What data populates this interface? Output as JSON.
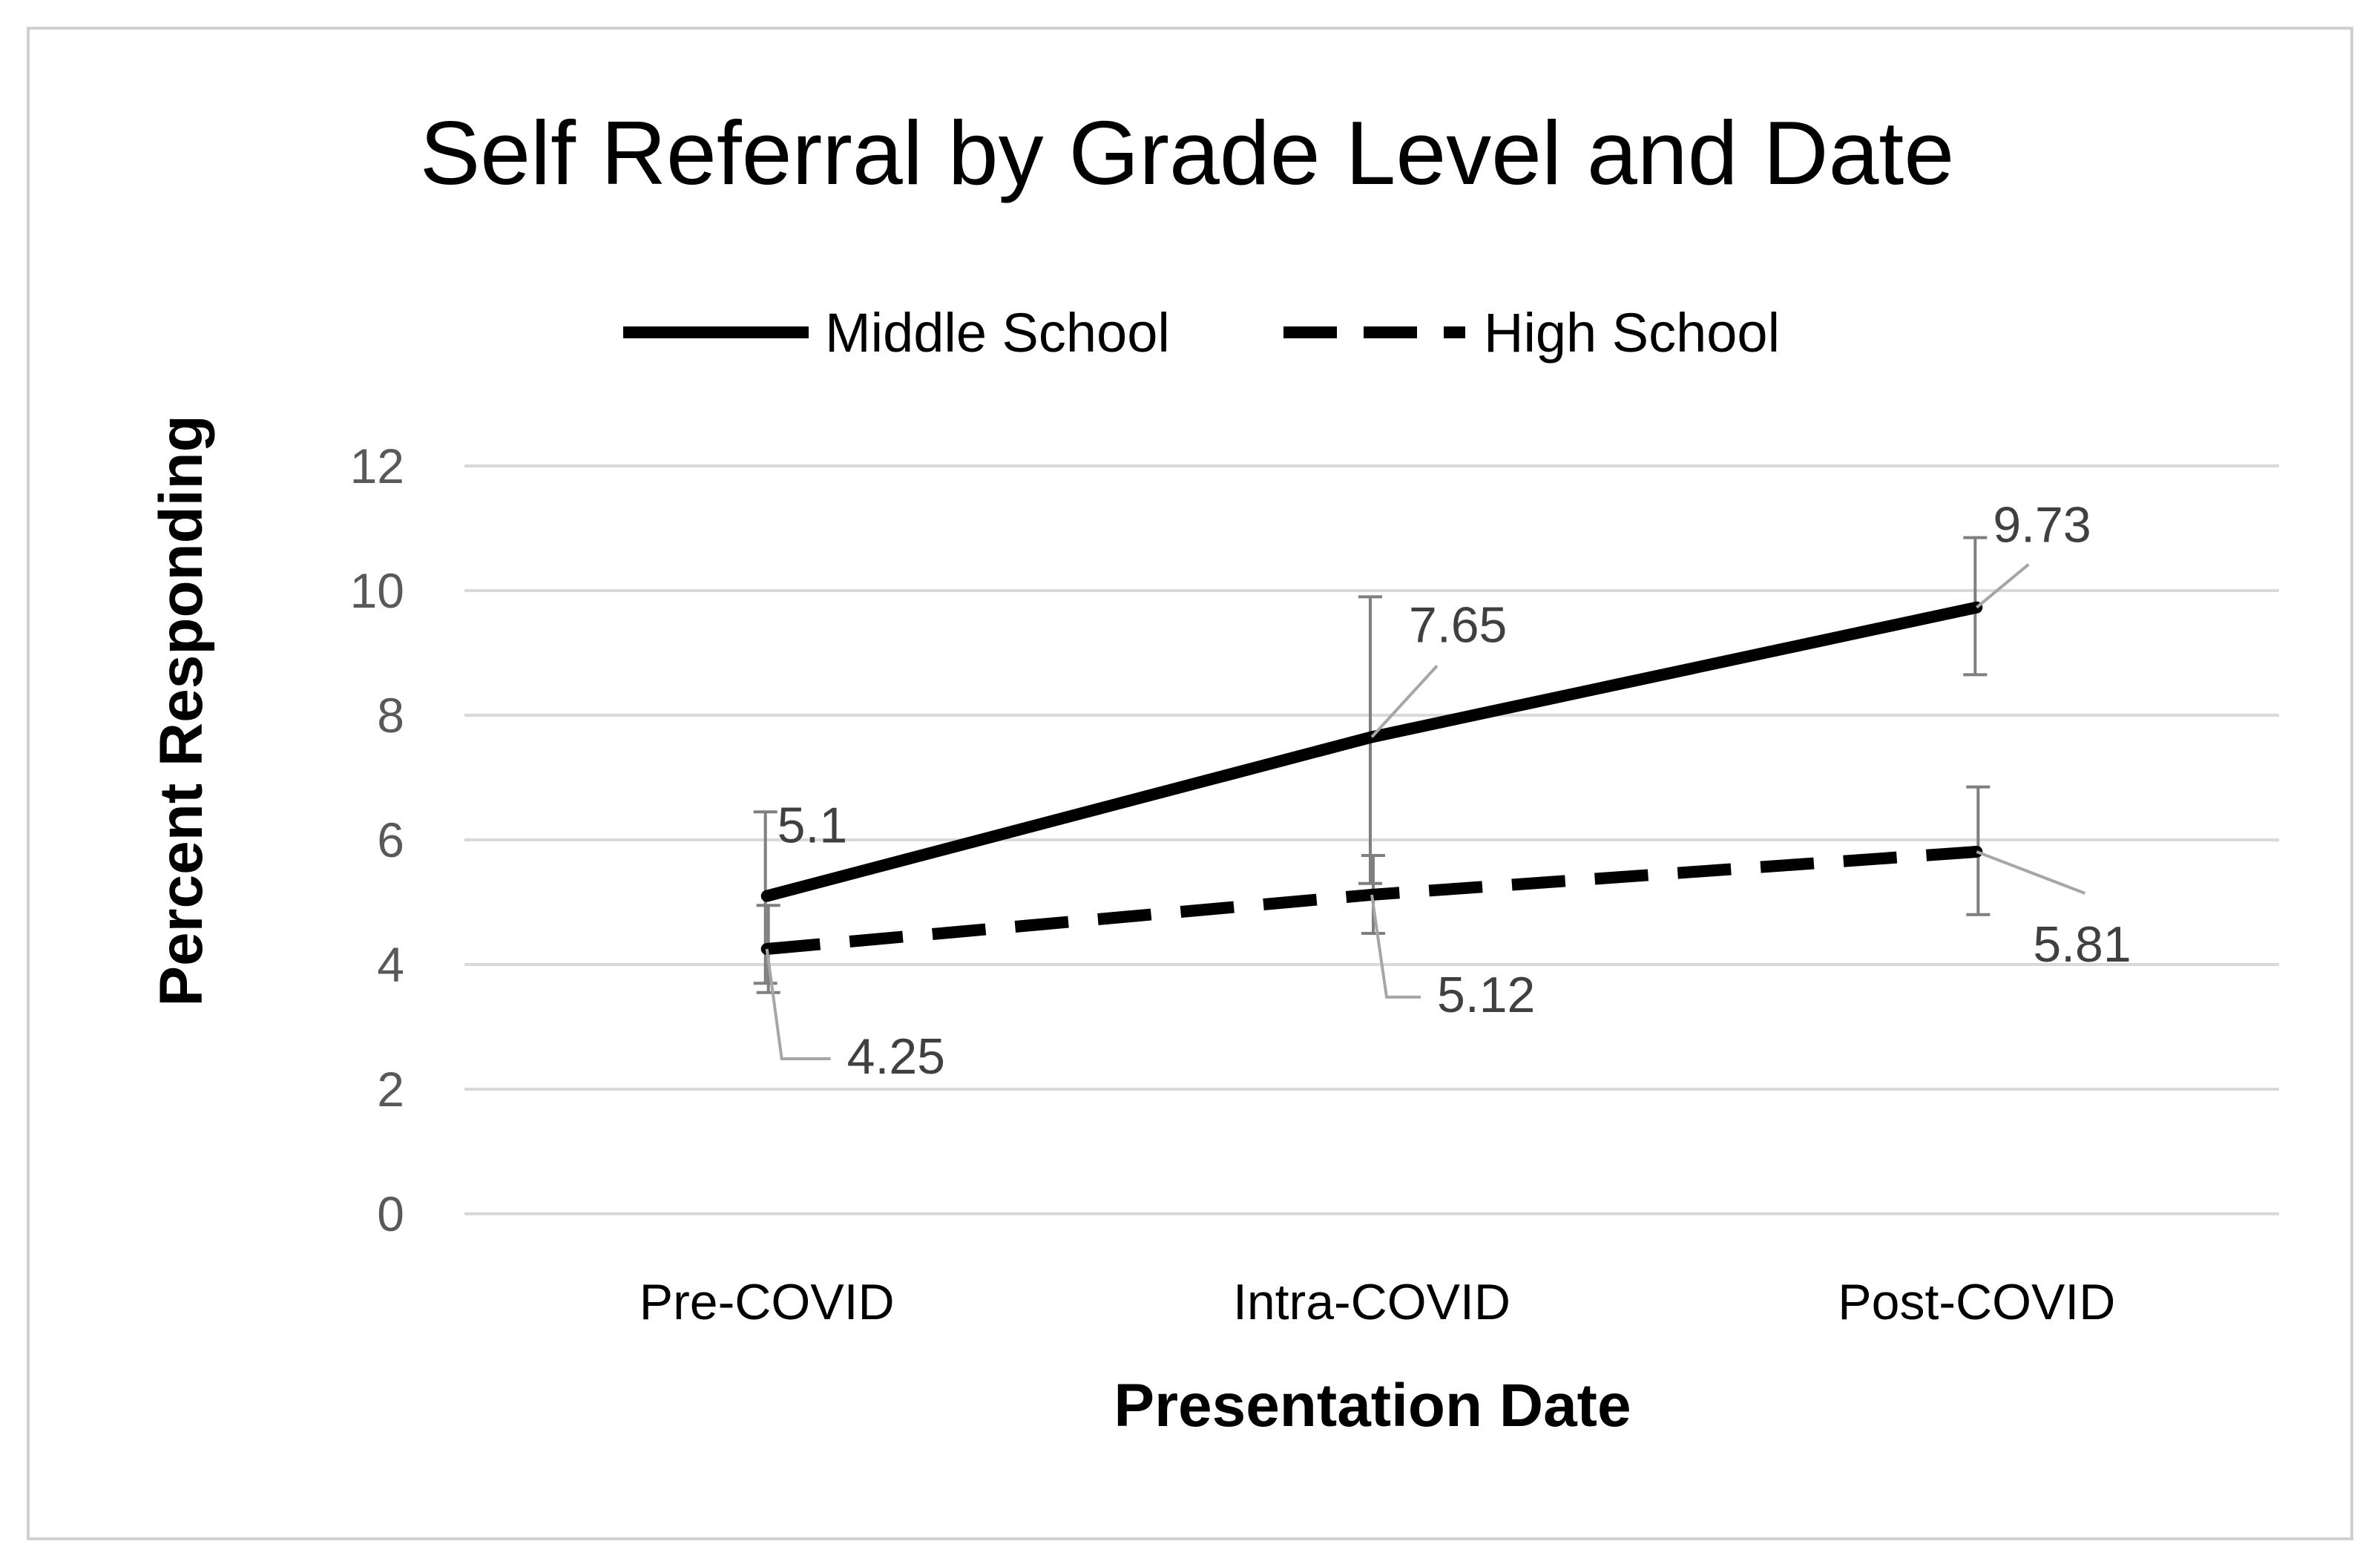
{
  "chart_data": {
    "type": "line",
    "title": "Self Referral by Grade Level and Date",
    "xlabel": "Presentation Date",
    "ylabel": "Percent Responding",
    "categories": [
      "Pre-COVID",
      "Intra-COVID",
      "Post-COVID"
    ],
    "ylim": [
      0,
      12
    ],
    "yticks": [
      0,
      2,
      4,
      6,
      8,
      10,
      12
    ],
    "grid": true,
    "legend_position": "top",
    "series": [
      {
        "name": "Middle School",
        "style": "solid",
        "color": "#000000",
        "values": [
          5.1,
          7.65,
          9.73
        ],
        "labels": [
          "5.1",
          "7.65",
          "9.73"
        ],
        "error_low": [
          3.7,
          5.3,
          8.65
        ],
        "error_high": [
          6.45,
          9.9,
          10.85
        ]
      },
      {
        "name": "High School",
        "style": "dashed",
        "color": "#000000",
        "values": [
          4.25,
          5.12,
          5.81
        ],
        "labels": [
          "4.25",
          "5.12",
          "5.81"
        ],
        "error_low": [
          3.55,
          4.5,
          4.8
        ],
        "error_high": [
          4.95,
          5.75,
          6.85
        ]
      }
    ]
  },
  "colors": {
    "gridline": "#d9d9d9",
    "errorbar": "#7f7f7f",
    "leader": "#a6a6a6"
  }
}
